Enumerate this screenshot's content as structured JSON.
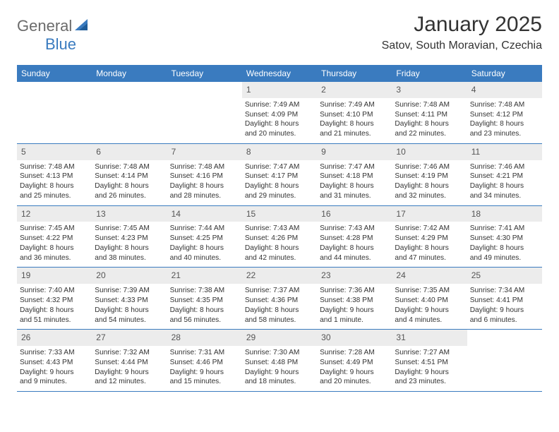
{
  "logo": {
    "word1": "General",
    "word2": "Blue"
  },
  "title": "January 2025",
  "location": "Satov, South Moravian, Czechia",
  "colors": {
    "header_bg": "#3a7bbf",
    "header_text": "#ffffff",
    "daynum_bg": "#ececec",
    "text": "#333333",
    "rule": "#3a7bbf"
  },
  "weekdays": [
    "Sunday",
    "Monday",
    "Tuesday",
    "Wednesday",
    "Thursday",
    "Friday",
    "Saturday"
  ],
  "weeks": [
    [
      null,
      null,
      null,
      {
        "n": "1",
        "sr": "Sunrise: 7:49 AM",
        "ss": "Sunset: 4:09 PM",
        "dl1": "Daylight: 8 hours",
        "dl2": "and 20 minutes."
      },
      {
        "n": "2",
        "sr": "Sunrise: 7:49 AM",
        "ss": "Sunset: 4:10 PM",
        "dl1": "Daylight: 8 hours",
        "dl2": "and 21 minutes."
      },
      {
        "n": "3",
        "sr": "Sunrise: 7:48 AM",
        "ss": "Sunset: 4:11 PM",
        "dl1": "Daylight: 8 hours",
        "dl2": "and 22 minutes."
      },
      {
        "n": "4",
        "sr": "Sunrise: 7:48 AM",
        "ss": "Sunset: 4:12 PM",
        "dl1": "Daylight: 8 hours",
        "dl2": "and 23 minutes."
      }
    ],
    [
      {
        "n": "5",
        "sr": "Sunrise: 7:48 AM",
        "ss": "Sunset: 4:13 PM",
        "dl1": "Daylight: 8 hours",
        "dl2": "and 25 minutes."
      },
      {
        "n": "6",
        "sr": "Sunrise: 7:48 AM",
        "ss": "Sunset: 4:14 PM",
        "dl1": "Daylight: 8 hours",
        "dl2": "and 26 minutes."
      },
      {
        "n": "7",
        "sr": "Sunrise: 7:48 AM",
        "ss": "Sunset: 4:16 PM",
        "dl1": "Daylight: 8 hours",
        "dl2": "and 28 minutes."
      },
      {
        "n": "8",
        "sr": "Sunrise: 7:47 AM",
        "ss": "Sunset: 4:17 PM",
        "dl1": "Daylight: 8 hours",
        "dl2": "and 29 minutes."
      },
      {
        "n": "9",
        "sr": "Sunrise: 7:47 AM",
        "ss": "Sunset: 4:18 PM",
        "dl1": "Daylight: 8 hours",
        "dl2": "and 31 minutes."
      },
      {
        "n": "10",
        "sr": "Sunrise: 7:46 AM",
        "ss": "Sunset: 4:19 PM",
        "dl1": "Daylight: 8 hours",
        "dl2": "and 32 minutes."
      },
      {
        "n": "11",
        "sr": "Sunrise: 7:46 AM",
        "ss": "Sunset: 4:21 PM",
        "dl1": "Daylight: 8 hours",
        "dl2": "and 34 minutes."
      }
    ],
    [
      {
        "n": "12",
        "sr": "Sunrise: 7:45 AM",
        "ss": "Sunset: 4:22 PM",
        "dl1": "Daylight: 8 hours",
        "dl2": "and 36 minutes."
      },
      {
        "n": "13",
        "sr": "Sunrise: 7:45 AM",
        "ss": "Sunset: 4:23 PM",
        "dl1": "Daylight: 8 hours",
        "dl2": "and 38 minutes."
      },
      {
        "n": "14",
        "sr": "Sunrise: 7:44 AM",
        "ss": "Sunset: 4:25 PM",
        "dl1": "Daylight: 8 hours",
        "dl2": "and 40 minutes."
      },
      {
        "n": "15",
        "sr": "Sunrise: 7:43 AM",
        "ss": "Sunset: 4:26 PM",
        "dl1": "Daylight: 8 hours",
        "dl2": "and 42 minutes."
      },
      {
        "n": "16",
        "sr": "Sunrise: 7:43 AM",
        "ss": "Sunset: 4:28 PM",
        "dl1": "Daylight: 8 hours",
        "dl2": "and 44 minutes."
      },
      {
        "n": "17",
        "sr": "Sunrise: 7:42 AM",
        "ss": "Sunset: 4:29 PM",
        "dl1": "Daylight: 8 hours",
        "dl2": "and 47 minutes."
      },
      {
        "n": "18",
        "sr": "Sunrise: 7:41 AM",
        "ss": "Sunset: 4:30 PM",
        "dl1": "Daylight: 8 hours",
        "dl2": "and 49 minutes."
      }
    ],
    [
      {
        "n": "19",
        "sr": "Sunrise: 7:40 AM",
        "ss": "Sunset: 4:32 PM",
        "dl1": "Daylight: 8 hours",
        "dl2": "and 51 minutes."
      },
      {
        "n": "20",
        "sr": "Sunrise: 7:39 AM",
        "ss": "Sunset: 4:33 PM",
        "dl1": "Daylight: 8 hours",
        "dl2": "and 54 minutes."
      },
      {
        "n": "21",
        "sr": "Sunrise: 7:38 AM",
        "ss": "Sunset: 4:35 PM",
        "dl1": "Daylight: 8 hours",
        "dl2": "and 56 minutes."
      },
      {
        "n": "22",
        "sr": "Sunrise: 7:37 AM",
        "ss": "Sunset: 4:36 PM",
        "dl1": "Daylight: 8 hours",
        "dl2": "and 58 minutes."
      },
      {
        "n": "23",
        "sr": "Sunrise: 7:36 AM",
        "ss": "Sunset: 4:38 PM",
        "dl1": "Daylight: 9 hours",
        "dl2": "and 1 minute."
      },
      {
        "n": "24",
        "sr": "Sunrise: 7:35 AM",
        "ss": "Sunset: 4:40 PM",
        "dl1": "Daylight: 9 hours",
        "dl2": "and 4 minutes."
      },
      {
        "n": "25",
        "sr": "Sunrise: 7:34 AM",
        "ss": "Sunset: 4:41 PM",
        "dl1": "Daylight: 9 hours",
        "dl2": "and 6 minutes."
      }
    ],
    [
      {
        "n": "26",
        "sr": "Sunrise: 7:33 AM",
        "ss": "Sunset: 4:43 PM",
        "dl1": "Daylight: 9 hours",
        "dl2": "and 9 minutes."
      },
      {
        "n": "27",
        "sr": "Sunrise: 7:32 AM",
        "ss": "Sunset: 4:44 PM",
        "dl1": "Daylight: 9 hours",
        "dl2": "and 12 minutes."
      },
      {
        "n": "28",
        "sr": "Sunrise: 7:31 AM",
        "ss": "Sunset: 4:46 PM",
        "dl1": "Daylight: 9 hours",
        "dl2": "and 15 minutes."
      },
      {
        "n": "29",
        "sr": "Sunrise: 7:30 AM",
        "ss": "Sunset: 4:48 PM",
        "dl1": "Daylight: 9 hours",
        "dl2": "and 18 minutes."
      },
      {
        "n": "30",
        "sr": "Sunrise: 7:28 AM",
        "ss": "Sunset: 4:49 PM",
        "dl1": "Daylight: 9 hours",
        "dl2": "and 20 minutes."
      },
      {
        "n": "31",
        "sr": "Sunrise: 7:27 AM",
        "ss": "Sunset: 4:51 PM",
        "dl1": "Daylight: 9 hours",
        "dl2": "and 23 minutes."
      },
      null
    ]
  ]
}
